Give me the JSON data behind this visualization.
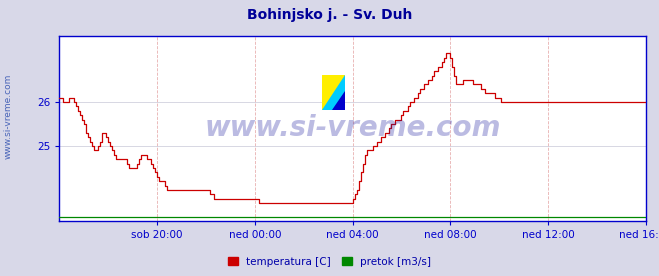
{
  "title": "Bohinjsko j. - Sv. Duh",
  "title_color": "#000099",
  "title_fontsize": 10,
  "bg_color": "#d8d8e8",
  "plot_bg_color": "#ffffff",
  "axis_color": "#0000cc",
  "tick_label_color": "#0000cc",
  "watermark_text": "www.si-vreme.com",
  "watermark_color": "#2020a0",
  "watermark_fontsize": 20,
  "sidebar_text": "www.si-vreme.com",
  "yticks": [
    25,
    26
  ],
  "ylim": [
    23.3,
    27.5
  ],
  "xlim": [
    0,
    288
  ],
  "x_tick_labels": [
    "sob 20:00",
    "ned 00:00",
    "ned 04:00",
    "ned 08:00",
    "ned 12:00",
    "ned 16:00"
  ],
  "x_tick_positions": [
    48,
    96,
    144,
    192,
    240,
    288
  ],
  "n_points": 289,
  "legend_labels": [
    "temperatura [C]",
    "pretok [m3/s]"
  ],
  "legend_colors": [
    "#cc0000",
    "#008800"
  ],
  "temp_color": "#cc0000",
  "pretok_color": "#008800",
  "pretok_value": 23.38,
  "temp_data": [
    26.1,
    26.1,
    26.0,
    26.0,
    26.0,
    26.1,
    26.1,
    26.0,
    25.9,
    25.8,
    25.7,
    25.6,
    25.5,
    25.3,
    25.2,
    25.1,
    25.0,
    24.9,
    24.9,
    25.0,
    25.1,
    25.3,
    25.3,
    25.2,
    25.1,
    25.0,
    24.9,
    24.8,
    24.7,
    24.7,
    24.7,
    24.7,
    24.7,
    24.6,
    24.5,
    24.5,
    24.5,
    24.5,
    24.6,
    24.7,
    24.8,
    24.8,
    24.8,
    24.7,
    24.7,
    24.6,
    24.5,
    24.4,
    24.3,
    24.2,
    24.2,
    24.2,
    24.1,
    24.0,
    24.0,
    24.0,
    24.0,
    24.0,
    24.0,
    24.0,
    24.0,
    24.0,
    24.0,
    24.0,
    24.0,
    24.0,
    24.0,
    24.0,
    24.0,
    24.0,
    24.0,
    24.0,
    24.0,
    24.0,
    23.9,
    23.9,
    23.8,
    23.8,
    23.8,
    23.8,
    23.8,
    23.8,
    23.8,
    23.8,
    23.8,
    23.8,
    23.8,
    23.8,
    23.8,
    23.8,
    23.8,
    23.8,
    23.8,
    23.8,
    23.8,
    23.8,
    23.8,
    23.8,
    23.7,
    23.7,
    23.7,
    23.7,
    23.7,
    23.7,
    23.7,
    23.7,
    23.7,
    23.7,
    23.7,
    23.7,
    23.7,
    23.7,
    23.7,
    23.7,
    23.7,
    23.7,
    23.7,
    23.7,
    23.7,
    23.7,
    23.7,
    23.7,
    23.7,
    23.7,
    23.7,
    23.7,
    23.7,
    23.7,
    23.7,
    23.7,
    23.7,
    23.7,
    23.7,
    23.7,
    23.7,
    23.7,
    23.7,
    23.7,
    23.7,
    23.7,
    23.7,
    23.7,
    23.7,
    23.7,
    23.8,
    23.9,
    24.0,
    24.2,
    24.4,
    24.6,
    24.8,
    24.9,
    24.9,
    24.9,
    25.0,
    25.0,
    25.1,
    25.1,
    25.2,
    25.2,
    25.3,
    25.3,
    25.4,
    25.5,
    25.5,
    25.6,
    25.6,
    25.6,
    25.7,
    25.8,
    25.8,
    25.9,
    26.0,
    26.0,
    26.1,
    26.1,
    26.2,
    26.3,
    26.3,
    26.4,
    26.4,
    26.5,
    26.5,
    26.6,
    26.7,
    26.7,
    26.8,
    26.8,
    26.9,
    27.0,
    27.1,
    27.1,
    27.0,
    26.8,
    26.6,
    26.4,
    26.4,
    26.4,
    26.5,
    26.5,
    26.5,
    26.5,
    26.5,
    26.4,
    26.4,
    26.4,
    26.4,
    26.3,
    26.3,
    26.2,
    26.2,
    26.2,
    26.2,
    26.2,
    26.1,
    26.1,
    26.1,
    26.0,
    26.0,
    26.0,
    26.0,
    26.0,
    26.0,
    26.0,
    26.0,
    26.0,
    26.0,
    26.0,
    26.0,
    26.0,
    26.0,
    26.0,
    26.0,
    26.0,
    26.0,
    26.0,
    26.0,
    26.0,
    26.0,
    26.0,
    26.0,
    26.0,
    26.0,
    26.0,
    26.0,
    26.0,
    26.0,
    26.0,
    26.0,
    26.0,
    26.0,
    26.0,
    26.0,
    26.0,
    26.0,
    26.0,
    26.0,
    26.0,
    26.0,
    26.0,
    26.0,
    26.0,
    26.0,
    26.0,
    26.0,
    26.0,
    26.0,
    26.0,
    26.0,
    26.0,
    26.0,
    26.0,
    26.0,
    26.0,
    26.0,
    26.0,
    26.0,
    26.0,
    26.0,
    26.0,
    26.0,
    26.0,
    26.0,
    26.0,
    26.0,
    26.0,
    26.0,
    26.0,
    26.0
  ]
}
